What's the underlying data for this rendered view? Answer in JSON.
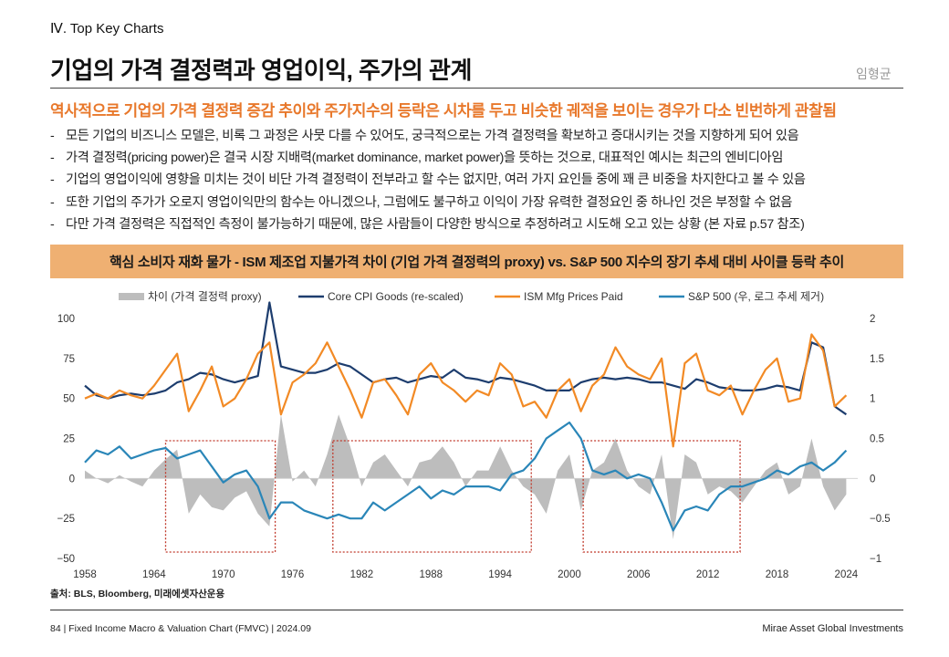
{
  "header": {
    "section": "Ⅳ. Top Key Charts",
    "title": "기업의 가격 결정력과 영업이익, 주가의 관계",
    "author": "임형균"
  },
  "headline": "역사적으로 기업의 가격 결정력 증감 추이와 주가지수의 등락은 시차를 두고 비슷한 궤적을 보이는 경우가 다소 빈번하게 관찰됨",
  "bullets": [
    "모든 기업의 비즈니스 모델은, 비록 그 과정은 사뭇 다를 수 있어도, 궁극적으로는 가격 결정력을 확보하고 증대시키는 것을 지향하게 되어 있음",
    "가격 결정력(pricing power)은 결국 시장 지배력(market dominance, market power)을 뜻하는 것으로, 대표적인 예시는 최근의 엔비디아임",
    "기업의 영업이익에 영향을 미치는 것이 비단 가격 결정력이 전부라고 할 수는 없지만, 여러 가지 요인들 중에 꽤 큰 비중을 차지한다고 볼 수 있음",
    "또한 기업의 주가가 오로지 영업이익만의 함수는 아니겠으나, 그럼에도 불구하고 이익이 가장 유력한 결정요인 중 하나인 것은 부정할 수 없음",
    "다만 가격 결정력은 직접적인 측정이 불가능하기 때문에, 많은 사람들이 다양한 방식으로 추정하려고 시도해 오고 있는 상황 (본 자료 p.57 참조)"
  ],
  "bullet_marker": "-",
  "banner": "핵심 소비자 재화 물가 - ISM 제조업 지불가격 차이 (기업 가격 결정력의 proxy) vs. S&P 500 지수의 장기 추세 대비 사이클 등락 추이",
  "chart_data": {
    "type": "line",
    "title": "핵심 소비자 재화 물가 - ISM 제조업 지불가격 차이 (기업 가격 결정력의 proxy) vs. S&P 500 지수의 장기 추세 대비 사이클 등락 추이",
    "x_ticks": [
      "1958",
      "1964",
      "1970",
      "1976",
      "1982",
      "1988",
      "1994",
      "2000",
      "2006",
      "2012",
      "2018",
      "2024"
    ],
    "xlim": [
      1958,
      2025
    ],
    "left_axis": {
      "ylim": [
        -50,
        100
      ],
      "ticks": [
        "100",
        "75",
        "50",
        "25",
        "0",
        "−25",
        "−50"
      ]
    },
    "right_axis": {
      "ylim": [
        -1,
        2
      ],
      "ticks": [
        "2",
        "1.5",
        "1",
        "0.5",
        "0",
        "−0.5",
        "−1"
      ]
    },
    "legend": [
      {
        "name": "차이 (가격 결정력 proxy)",
        "color": "#bdbdbd",
        "kind": "area"
      },
      {
        "name": "Core CPI Goods (re-scaled)",
        "color": "#1d3d6e",
        "kind": "line"
      },
      {
        "name": "ISM Mfg Prices Paid",
        "color": "#f28a25",
        "kind": "line"
      },
      {
        "name": "S&P 500 (우, 로그 추세 제거)",
        "color": "#2a86b8",
        "kind": "line"
      }
    ],
    "highlight_periods": [
      [
        1965.0,
        1974.5
      ],
      [
        1979.5,
        1996.7
      ],
      [
        2001.2,
        2014.8
      ]
    ],
    "series": [
      {
        "name": "차이 (가격 결정력 proxy)",
        "axis": "left",
        "color": "#bdbdbd",
        "x": [
          1958,
          1959,
          1960,
          1961,
          1962,
          1963,
          1964,
          1965,
          1966,
          1967,
          1968,
          1969,
          1970,
          1971,
          1972,
          1973,
          1974,
          1975,
          1976,
          1977,
          1978,
          1979,
          1980,
          1981,
          1982,
          1983,
          1984,
          1985,
          1986,
          1987,
          1988,
          1989,
          1990,
          1991,
          1992,
          1993,
          1994,
          1995,
          1996,
          1997,
          1998,
          1999,
          2000,
          2001,
          2002,
          2003,
          2004,
          2005,
          2006,
          2007,
          2008,
          2009,
          2010,
          2011,
          2012,
          2013,
          2014,
          2015,
          2016,
          2017,
          2018,
          2019,
          2020,
          2021,
          2022,
          2023,
          2024
        ],
        "values": [
          5,
          0,
          -3,
          2,
          -2,
          -5,
          5,
          12,
          18,
          -22,
          -10,
          -18,
          -20,
          -12,
          -8,
          -22,
          -30,
          40,
          -2,
          5,
          -5,
          15,
          40,
          20,
          -5,
          10,
          15,
          5,
          -5,
          10,
          12,
          20,
          10,
          -5,
          5,
          5,
          20,
          5,
          -5,
          -10,
          -22,
          5,
          15,
          -20,
          5,
          10,
          25,
          5,
          -5,
          -10,
          15,
          -38,
          15,
          10,
          -10,
          -5,
          -8,
          -15,
          -5,
          5,
          10,
          -10,
          -5,
          25,
          -5,
          -20,
          -10
        ]
      },
      {
        "name": "Core CPI Goods (re-scaled)",
        "axis": "left",
        "color": "#1d3d6e",
        "x": [
          1958,
          1959,
          1960,
          1961,
          1962,
          1963,
          1964,
          1965,
          1966,
          1967,
          1968,
          1969,
          1970,
          1971,
          1972,
          1973,
          1974,
          1975,
          1976,
          1977,
          1978,
          1979,
          1980,
          1981,
          1982,
          1983,
          1984,
          1985,
          1986,
          1987,
          1988,
          1989,
          1990,
          1991,
          1992,
          1993,
          1994,
          1995,
          1996,
          1997,
          1998,
          1999,
          2000,
          2001,
          2002,
          2003,
          2004,
          2005,
          2006,
          2007,
          2008,
          2009,
          2010,
          2011,
          2012,
          2013,
          2014,
          2015,
          2016,
          2017,
          2018,
          2019,
          2020,
          2021,
          2022,
          2023,
          2024
        ],
        "values": [
          58,
          52,
          50,
          52,
          53,
          52,
          53,
          55,
          60,
          62,
          66,
          65,
          62,
          60,
          62,
          64,
          110,
          70,
          68,
          66,
          66,
          68,
          72,
          70,
          65,
          60,
          62,
          63,
          60,
          62,
          64,
          63,
          68,
          63,
          62,
          60,
          63,
          62,
          60,
          58,
          55,
          55,
          55,
          60,
          62,
          63,
          62,
          63,
          62,
          60,
          60,
          58,
          56,
          62,
          60,
          57,
          56,
          55,
          55,
          56,
          58,
          57,
          55,
          85,
          82,
          45,
          40
        ]
      },
      {
        "name": "ISM Mfg Prices Paid",
        "axis": "left",
        "color": "#f28a25",
        "x": [
          1958,
          1959,
          1960,
          1961,
          1962,
          1963,
          1964,
          1965,
          1966,
          1967,
          1968,
          1969,
          1970,
          1971,
          1972,
          1973,
          1974,
          1975,
          1976,
          1977,
          1978,
          1979,
          1980,
          1981,
          1982,
          1983,
          1984,
          1985,
          1986,
          1987,
          1988,
          1989,
          1990,
          1991,
          1992,
          1993,
          1994,
          1995,
          1996,
          1997,
          1998,
          1999,
          2000,
          2001,
          2002,
          2003,
          2004,
          2005,
          2006,
          2007,
          2008,
          2009,
          2010,
          2011,
          2012,
          2013,
          2014,
          2015,
          2016,
          2017,
          2018,
          2019,
          2020,
          2021,
          2022,
          2023,
          2024
        ],
        "values": [
          50,
          53,
          50,
          55,
          52,
          50,
          58,
          68,
          78,
          42,
          55,
          70,
          45,
          50,
          62,
          78,
          85,
          40,
          60,
          65,
          72,
          85,
          70,
          55,
          38,
          60,
          62,
          52,
          40,
          65,
          72,
          60,
          55,
          48,
          55,
          52,
          72,
          65,
          45,
          48,
          38,
          55,
          62,
          42,
          58,
          65,
          82,
          70,
          65,
          62,
          75,
          20,
          72,
          78,
          55,
          52,
          58,
          40,
          55,
          68,
          75,
          48,
          50,
          90,
          80,
          45,
          52
        ]
      },
      {
        "name": "S&P 500 (우, 로그 추세 제거)",
        "axis": "right",
        "color": "#2a86b8",
        "x": [
          1958,
          1959,
          1960,
          1961,
          1962,
          1963,
          1964,
          1965,
          1966,
          1967,
          1968,
          1969,
          1970,
          1971,
          1972,
          1973,
          1974,
          1975,
          1976,
          1977,
          1978,
          1979,
          1980,
          1981,
          1982,
          1983,
          1984,
          1985,
          1986,
          1987,
          1988,
          1989,
          1990,
          1991,
          1992,
          1993,
          1994,
          1995,
          1996,
          1997,
          1998,
          1999,
          2000,
          2001,
          2002,
          2003,
          2004,
          2005,
          2006,
          2007,
          2008,
          2009,
          2010,
          2011,
          2012,
          2013,
          2014,
          2015,
          2016,
          2017,
          2018,
          2019,
          2020,
          2021,
          2022,
          2023,
          2024
        ],
        "values": [
          0.2,
          0.35,
          0.3,
          0.4,
          0.25,
          0.3,
          0.35,
          0.38,
          0.25,
          0.3,
          0.35,
          0.15,
          -0.05,
          0.05,
          0.1,
          -0.1,
          -0.5,
          -0.3,
          -0.3,
          -0.4,
          -0.45,
          -0.5,
          -0.45,
          -0.5,
          -0.5,
          -0.3,
          -0.4,
          -0.3,
          -0.2,
          -0.1,
          -0.25,
          -0.15,
          -0.2,
          -0.1,
          -0.1,
          -0.1,
          -0.15,
          0.05,
          0.1,
          0.25,
          0.5,
          0.6,
          0.7,
          0.5,
          0.1,
          0.05,
          0.1,
          0.0,
          0.05,
          0.0,
          -0.3,
          -0.65,
          -0.4,
          -0.35,
          -0.4,
          -0.2,
          -0.1,
          -0.1,
          -0.05,
          0.0,
          0.1,
          0.05,
          0.15,
          0.2,
          0.1,
          0.2,
          0.35
        ]
      }
    ]
  },
  "source": "출처: BLS, Bloomberg, 미래에셋자산운용",
  "footer": {
    "left": "84 | Fixed Income Macro & Valuation Chart (FMVC) | 2024.09",
    "right": "Mirae Asset Global Investments"
  }
}
